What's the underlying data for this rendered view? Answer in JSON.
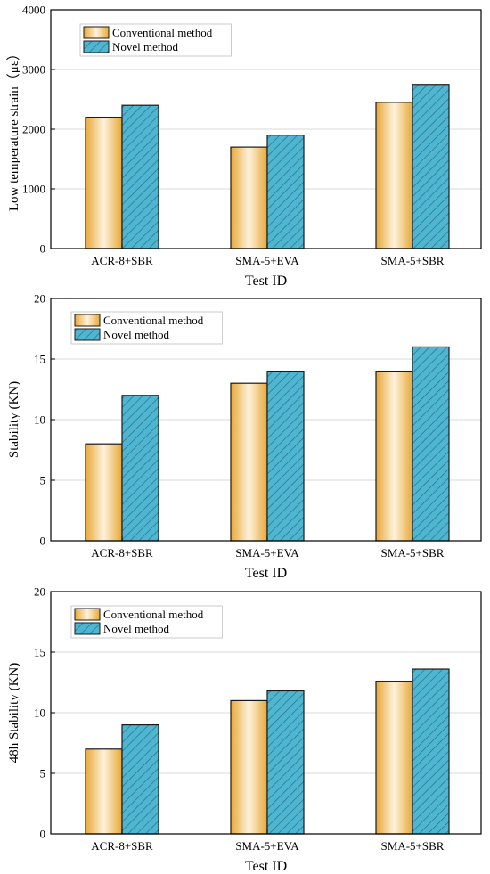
{
  "chart_data": [
    {
      "type": "bar",
      "categories": [
        "ACR-8+SBR",
        "SMA-5+EVA",
        "SMA-5+SBR"
      ],
      "series": [
        {
          "name": "Conventional method",
          "values": [
            2200,
            1700,
            2450
          ]
        },
        {
          "name": "Novel method",
          "values": [
            2400,
            1900,
            2750
          ]
        }
      ],
      "xlabel": "Test ID",
      "ylabel": "Low temperature strain（με）",
      "ylim": [
        0,
        4000
      ],
      "yticks": [
        0,
        1000,
        2000,
        3000,
        4000
      ],
      "grid": true,
      "legend": "top-left"
    },
    {
      "type": "bar",
      "categories": [
        "ACR-8+SBR",
        "SMA-5+EVA",
        "SMA-5+SBR"
      ],
      "series": [
        {
          "name": "Conventional method",
          "values": [
            8,
            13,
            14
          ]
        },
        {
          "name": "Novel method",
          "values": [
            12,
            14,
            16
          ]
        }
      ],
      "xlabel": "Test ID",
      "ylabel": "Stability (KN)",
      "ylim": [
        0,
        20
      ],
      "yticks": [
        0,
        5,
        10,
        15,
        20
      ],
      "grid": true,
      "legend": "top-left"
    },
    {
      "type": "bar",
      "categories": [
        "ACR-8+SBR",
        "SMA-5+EVA",
        "SMA-5+SBR"
      ],
      "series": [
        {
          "name": "Conventional method",
          "values": [
            7,
            11,
            12.6
          ]
        },
        {
          "name": "Novel method",
          "values": [
            9,
            11.8,
            13.6
          ]
        }
      ],
      "xlabel": "Test ID",
      "ylabel": "48h Stability (KN)",
      "ylim": [
        0,
        20
      ],
      "yticks": [
        0,
        5,
        10,
        15,
        20
      ],
      "grid": true,
      "legend": "top-left"
    }
  ],
  "colors": {
    "conventional_edge": "#e8a838",
    "conventional_center": "#fdf2dc",
    "novel_base": "#4fb6d2",
    "novel_hatch": "#2a6f85",
    "bar_outline": "#1a1a1a",
    "grid": "#d9d9d9"
  }
}
